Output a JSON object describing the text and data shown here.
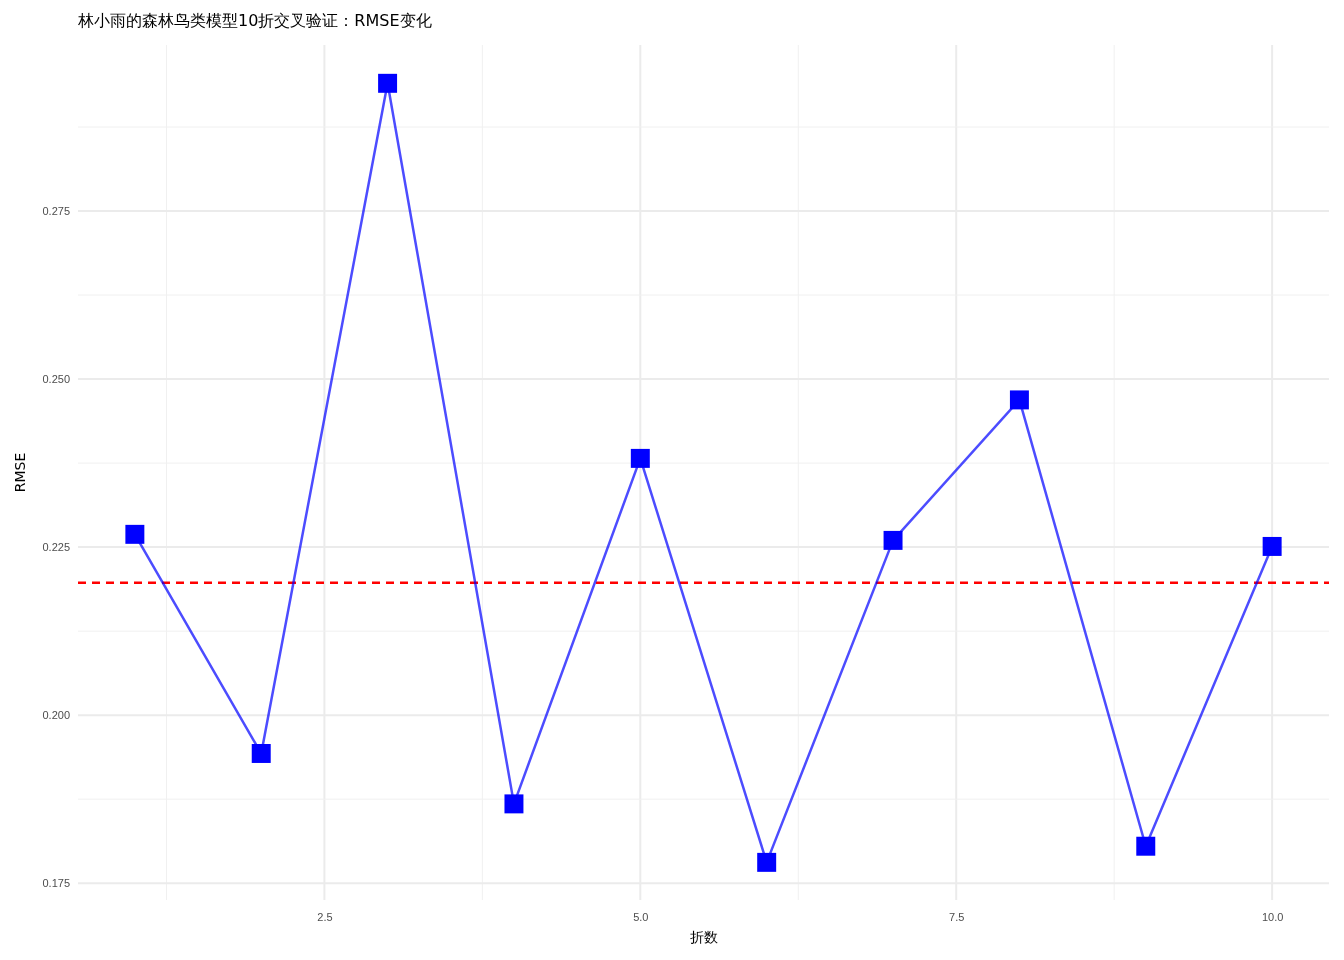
{
  "chart_data": {
    "type": "line",
    "title": "林小雨的森林鸟类模型10折交叉验证：RMSE变化",
    "xlabel": "折数",
    "ylabel": "RMSE",
    "x": [
      1,
      2,
      3,
      4,
      5,
      6,
      7,
      8,
      9,
      10
    ],
    "series": [
      {
        "color": "#0000ff",
        "values": [
          0.2269,
          0.1943,
          0.294,
          0.1868,
          0.2382,
          0.1781,
          0.226,
          0.2469,
          0.1805,
          0.2251
        ]
      }
    ],
    "marker": "square",
    "line_style": "solid",
    "xlim": [
      0.55,
      10.45
    ],
    "xticks": [
      2.5,
      {
        "value": 5,
        "label": "5.0"
      },
      7.5,
      {
        "value": 10,
        "label": "10.0"
      }
    ],
    "ylim": [
      0.1725,
      0.2997
    ],
    "yticks": [
      0.175,
      {
        "value": 0.2,
        "label": "0.200"
      },
      0.225,
      {
        "value": 0.25,
        "label": "0.250"
      },
      0.275
    ],
    "ref_lines": [
      {
        "axis": "y",
        "value": 0.2197,
        "color": "#ff0000",
        "line_style": "dashed"
      }
    ],
    "grid": true
  }
}
